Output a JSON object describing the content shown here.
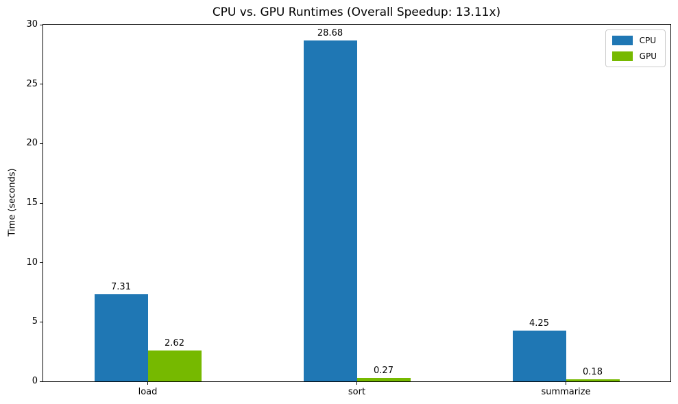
{
  "chart_data": {
    "type": "bar",
    "title": "CPU vs. GPU Runtimes (Overall Speedup: 13.11x)",
    "xlabel": "",
    "ylabel": "Time (seconds)",
    "categories": [
      "load",
      "sort",
      "summarize"
    ],
    "series": [
      {
        "name": "CPU",
        "color": "#1f77b4",
        "values": [
          7.31,
          28.68,
          4.25
        ]
      },
      {
        "name": "GPU",
        "color": "#76b900",
        "values": [
          2.62,
          0.27,
          0.18
        ]
      }
    ],
    "bar_value_labels": [
      [
        "7.31",
        "28.68",
        "4.25"
      ],
      [
        "2.62",
        "0.27",
        "0.18"
      ]
    ],
    "ylim": [
      0,
      30
    ],
    "yticks": [
      0,
      5,
      10,
      15,
      20,
      25,
      30
    ],
    "grid": false,
    "legend_position": "upper right",
    "axis_color": "#000000",
    "background_color": "#ffffff"
  }
}
